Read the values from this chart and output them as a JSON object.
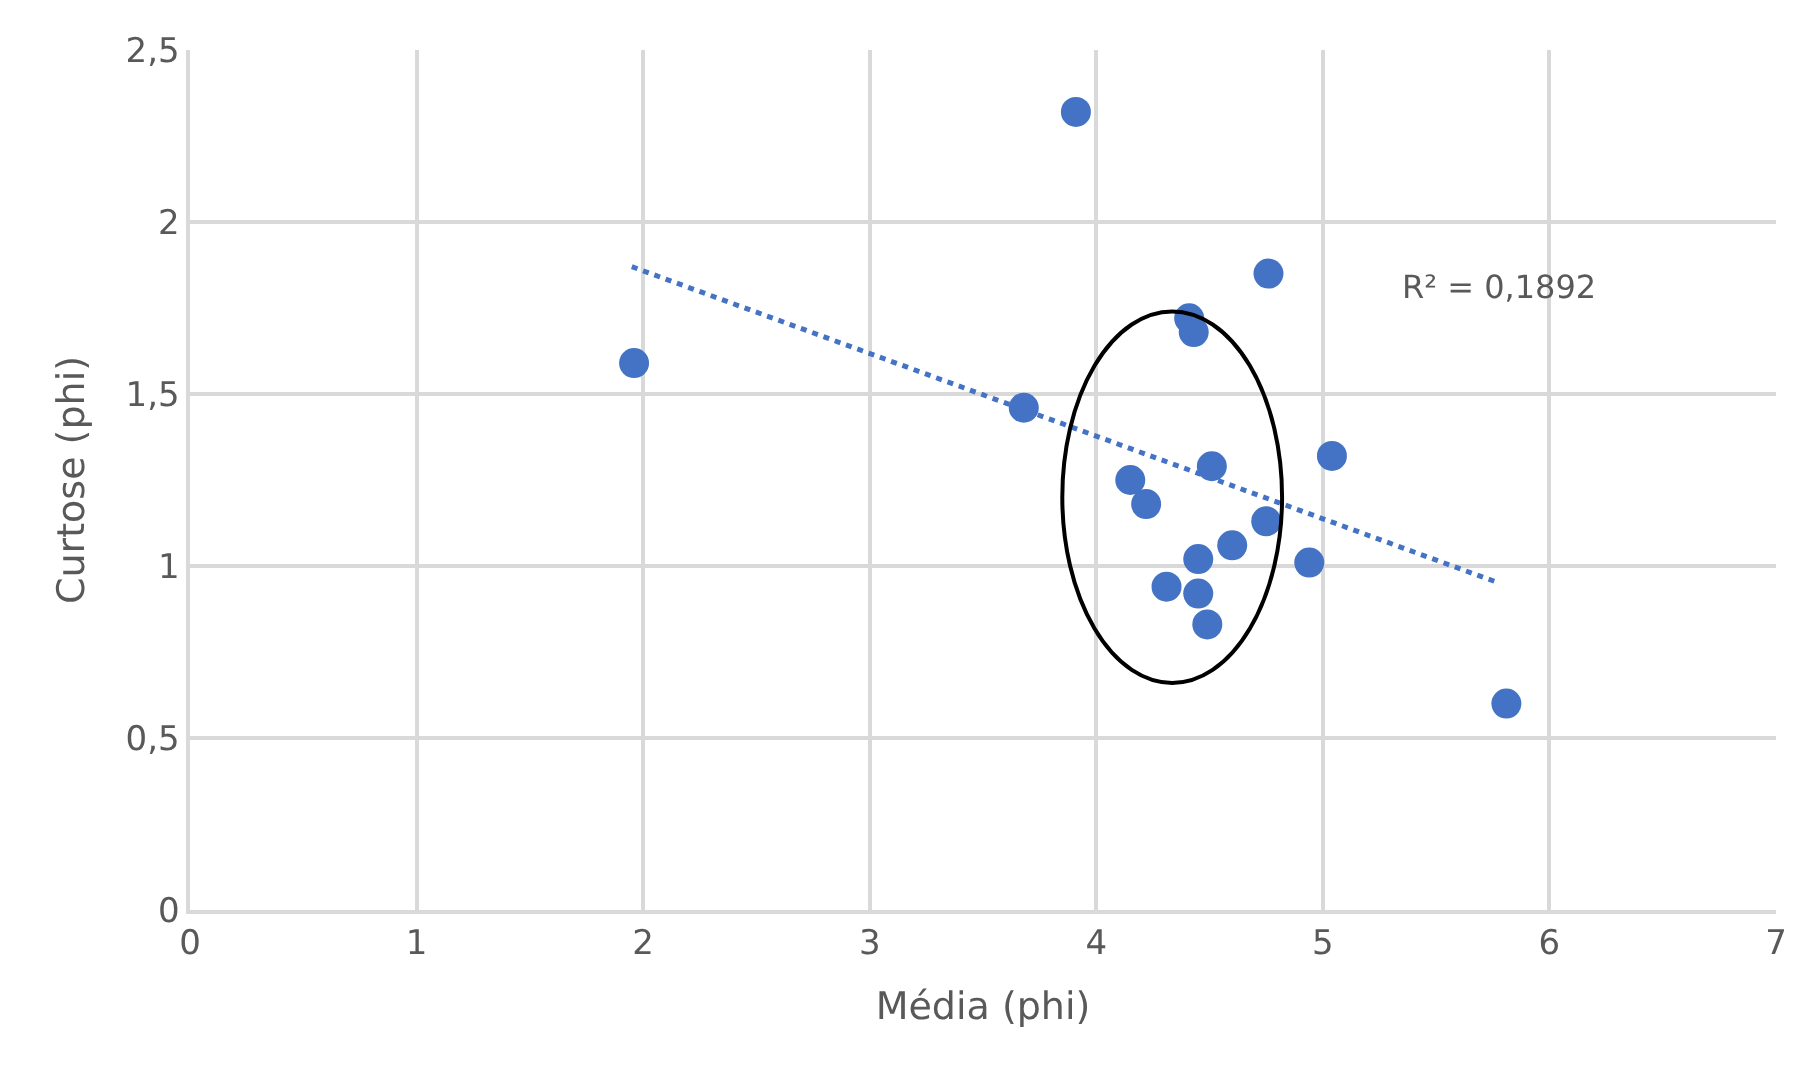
{
  "chart_data": {
    "type": "scatter",
    "xlabel": "Média (phi)",
    "ylabel": "Curtose (phi)",
    "xlim": [
      0,
      7
    ],
    "xticks": [
      0,
      1,
      2,
      3,
      4,
      5,
      6,
      7
    ],
    "ylim": [
      0,
      2.5
    ],
    "yticks": [
      0,
      {
        "value": 0.5,
        "label": "0,5"
      },
      1,
      {
        "value": 1.5,
        "label": "1,5"
      },
      2,
      {
        "value": 2.5,
        "label": "2,5"
      }
    ],
    "grid": true,
    "legend": false,
    "marker": "circle",
    "series": [
      {
        "color": "#4472c4",
        "x": [
          3.91,
          1.96,
          3.68,
          4.76,
          4.41,
          4.43,
          4.51,
          5.04,
          4.15,
          4.22,
          4.75,
          4.6,
          4.45,
          4.94,
          4.31,
          4.45,
          4.49,
          5.81
        ],
        "values": [
          2.32,
          1.59,
          1.46,
          1.85,
          1.72,
          1.68,
          1.29,
          1.32,
          1.25,
          1.18,
          1.13,
          1.06,
          1.02,
          1.01,
          0.94,
          0.92,
          0.83,
          0.6
        ]
      },
      {
        "type": "line",
        "color": "#4472c4",
        "line_style": "dotted",
        "marker": "none",
        "x": [
          1.95,
          5.78
        ],
        "values": [
          1.87,
          0.95
        ]
      }
    ],
    "annotations": [
      "R² = 0,1892"
    ]
  }
}
